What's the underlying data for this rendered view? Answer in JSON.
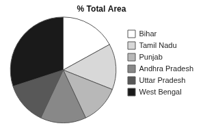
{
  "chart_data": {
    "type": "pie",
    "title": "% Total Area",
    "categories": [
      "Bihar",
      "Tamil Nadu",
      "Punjab",
      "Andhra Pradesh",
      "Uttar Pradesh",
      "West Bengal"
    ],
    "values": [
      17,
      14,
      12,
      14,
      13,
      30
    ],
    "colors": [
      "#ffffff",
      "#d8d8d8",
      "#b8b8b8",
      "#888888",
      "#585858",
      "#1a1a1a"
    ],
    "legend": "right"
  }
}
